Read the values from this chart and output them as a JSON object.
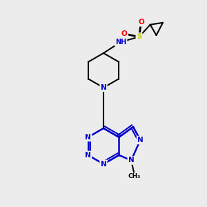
{
  "bg_color": "#ececec",
  "bond_color": "#000000",
  "bond_width": 1.5,
  "aromatic_bond_color": "#0000cc",
  "atom_colors": {
    "N": "#0000cc",
    "S": "#cccc00",
    "O": "#ff0000",
    "C": "#000000",
    "H": "#4aa0a0"
  },
  "font_size": 7.5
}
